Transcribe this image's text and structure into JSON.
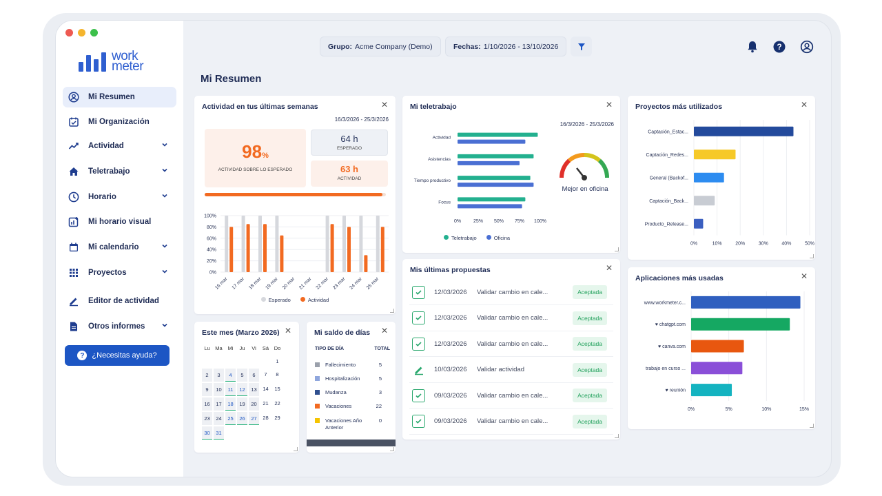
{
  "window": {
    "dots": [
      "#ee5a52",
      "#f5b52e",
      "#3cc04b"
    ]
  },
  "brand": {
    "line1": "work",
    "line2": "meter"
  },
  "sidebar": {
    "items": [
      {
        "label": "Mi Resumen",
        "icon": "user-circle-icon",
        "active": true
      },
      {
        "label": "Mi Organización",
        "icon": "calendar-check-icon"
      },
      {
        "label": "Actividad",
        "icon": "trend-line-icon",
        "expandable": true
      },
      {
        "label": "Teletrabajo",
        "icon": "home-icon",
        "expandable": true
      },
      {
        "label": "Horario",
        "icon": "clock-icon",
        "expandable": true
      },
      {
        "label": "Mi horario visual",
        "icon": "chart-add-icon"
      },
      {
        "label": "Mi calendario",
        "icon": "calendar-icon",
        "expandable": true
      },
      {
        "label": "Proyectos",
        "icon": "grid-dots-icon",
        "expandable": true
      },
      {
        "label": "Editor de actividad",
        "icon": "pencil-icon"
      },
      {
        "label": "Otros informes",
        "icon": "document-icon",
        "expandable": true
      }
    ],
    "help_label": "¿Necesitas ayuda?"
  },
  "topbar": {
    "group_label": "Grupo:",
    "group_value": "Acme Company (Demo)",
    "dates_label": "Fechas:",
    "dates_value": "1/10/2026 - 13/10/2026",
    "icons": [
      "bell-icon",
      "help-circle-icon",
      "user-icon"
    ]
  },
  "page_title": "Mi Resumen",
  "colors": {
    "accent": "#1d56c4",
    "orange": "#f26a21",
    "grey_bar": "#d6d8dd",
    "teal": "#23b08f",
    "blue": "#4a6fd3"
  },
  "activity_card": {
    "title": "Actividad en tus últimas semanas",
    "date_range": "16/3/2026 - 25/3/2026",
    "percent": "98",
    "percent_unit": "%",
    "percent_caption": "ACTIVIDAD SOBRE LO ESPERADO",
    "expected_value": "64 h",
    "expected_caption": "ESPERADO",
    "activity_value": "63 h",
    "activity_caption": "ACTIVIDAD",
    "progress": 0.98
  },
  "telework_card": {
    "title": "Mi teletrabajo",
    "date_range": "16/3/2026 - 25/3/2026",
    "gauge_label": "Mejor en oficina"
  },
  "projects_card": {
    "title": "Proyectos más utilizados"
  },
  "apps_card": {
    "title": "Aplicaciones más usadas"
  },
  "calendar_card": {
    "title": "Este mes (Marzo 2026)",
    "weekdays": [
      "Lu",
      "Ma",
      "Mi",
      "Ju",
      "Vi",
      "Sá",
      "Do"
    ],
    "first_weekday_index": 6,
    "days_in_month": 31,
    "grey_days": [
      2,
      3,
      4,
      5,
      6,
      9,
      10,
      11,
      12,
      13,
      16,
      17,
      18,
      19,
      20,
      23,
      24,
      25,
      26,
      27,
      30,
      31
    ],
    "marked_days": [
      4,
      11,
      12,
      18,
      25,
      26,
      27,
      30,
      31
    ]
  },
  "saldo_card": {
    "title": "Mi saldo de días",
    "col_type": "TIPO DE DÍA",
    "col_total": "TOTAL",
    "rows": [
      {
        "label": "Fallecimiento",
        "value": "5",
        "color": "#9aa0ab"
      },
      {
        "label": "Hospitalización",
        "value": "5",
        "color": "#8fa6dd"
      },
      {
        "label": "Mudanza",
        "value": "3",
        "color": "#2f4f8f"
      },
      {
        "label": "Vacaciones",
        "value": "22",
        "color": "#f26a21"
      },
      {
        "label": "Vacaciones Año Anterior",
        "value": "0",
        "color": "#f5c400"
      }
    ]
  },
  "proposals_card": {
    "title": "Mis últimas propuestas",
    "rows": [
      {
        "date": "12/03/2026",
        "text": "Validar cambio en cale...",
        "status": "Aceptada",
        "icon": "calendar-check-icon"
      },
      {
        "date": "12/03/2026",
        "text": "Validar cambio en cale...",
        "status": "Aceptada",
        "icon": "calendar-check-icon"
      },
      {
        "date": "12/03/2026",
        "text": "Validar cambio en cale...",
        "status": "Aceptada",
        "icon": "calendar-check-icon"
      },
      {
        "date": "10/03/2026",
        "text": "Validar actividad",
        "status": "Aceptada",
        "icon": "pencil-icon"
      },
      {
        "date": "09/03/2026",
        "text": "Validar cambio en cale...",
        "status": "Aceptada",
        "icon": "calendar-check-icon"
      },
      {
        "date": "09/03/2026",
        "text": "Validar cambio en cale...",
        "status": "Aceptada",
        "icon": "calendar-check-icon"
      }
    ]
  },
  "chart_data": [
    {
      "id": "activity",
      "type": "bar",
      "categories": [
        "16 mar",
        "17 mar",
        "18 mar",
        "19 mar",
        "20 mar",
        "21 mar",
        "22 mar",
        "23 mar",
        "24 mar",
        "25 mar"
      ],
      "series": [
        {
          "name": "Esperado",
          "color": "#d6d8dd",
          "values": [
            100,
            100,
            100,
            100,
            0,
            0,
            100,
            100,
            100,
            100
          ]
        },
        {
          "name": "Actividad",
          "color": "#f26a21",
          "values": [
            80,
            85,
            85,
            65,
            0,
            0,
            85,
            80,
            30,
            80
          ]
        }
      ],
      "yticks": [
        "100%",
        "80%",
        "60%",
        "40%",
        "20%",
        "0%"
      ],
      "ylim": [
        0,
        100
      ],
      "legend": "bottom"
    },
    {
      "id": "telework",
      "type": "bar",
      "orientation": "horizontal",
      "categories": [
        "Actividad",
        "Asistencias",
        "Tiempo productivo",
        "Focus"
      ],
      "series": [
        {
          "name": "Teletrabajo",
          "color": "#23b08f",
          "values": [
            97,
            92,
            88,
            82
          ]
        },
        {
          "name": "Oficina",
          "color": "#4a6fd3",
          "values": [
            82,
            75,
            92,
            78
          ]
        }
      ],
      "xticks": [
        "0%",
        "25%",
        "50%",
        "75%",
        "100%"
      ],
      "xlim": [
        0,
        100
      ],
      "legend": "bottom"
    },
    {
      "id": "projects",
      "type": "bar",
      "orientation": "horizontal",
      "categories": [
        "Captación_Estac...",
        "Captación_Redes...",
        "General (Backof...",
        "Captación_Back...",
        "Producto_Release..."
      ],
      "values": [
        43,
        18,
        13,
        9,
        4
      ],
      "colors": [
        "#234a9c",
        "#f6c928",
        "#2d8cf0",
        "#c8ccd3",
        "#3b5fc0"
      ],
      "xticks": [
        "0%",
        "10%",
        "20%",
        "30%",
        "40%",
        "50%"
      ],
      "xlim": [
        0,
        50
      ]
    },
    {
      "id": "apps",
      "type": "bar",
      "orientation": "horizontal",
      "categories": [
        "www.workmeter.c...",
        "♥ chatgpt.com",
        "♥ canva.com",
        "trabajo en curso ...",
        "♥ reunión"
      ],
      "values": [
        14.5,
        13.1,
        7.0,
        6.8,
        5.4
      ],
      "colors": [
        "#2f5fbf",
        "#15a862",
        "#e8570f",
        "#8a4fd8",
        "#14b3c0"
      ],
      "xticks": [
        "0%",
        "5%",
        "10%",
        "15%"
      ],
      "xlim": [
        0,
        15
      ]
    }
  ]
}
